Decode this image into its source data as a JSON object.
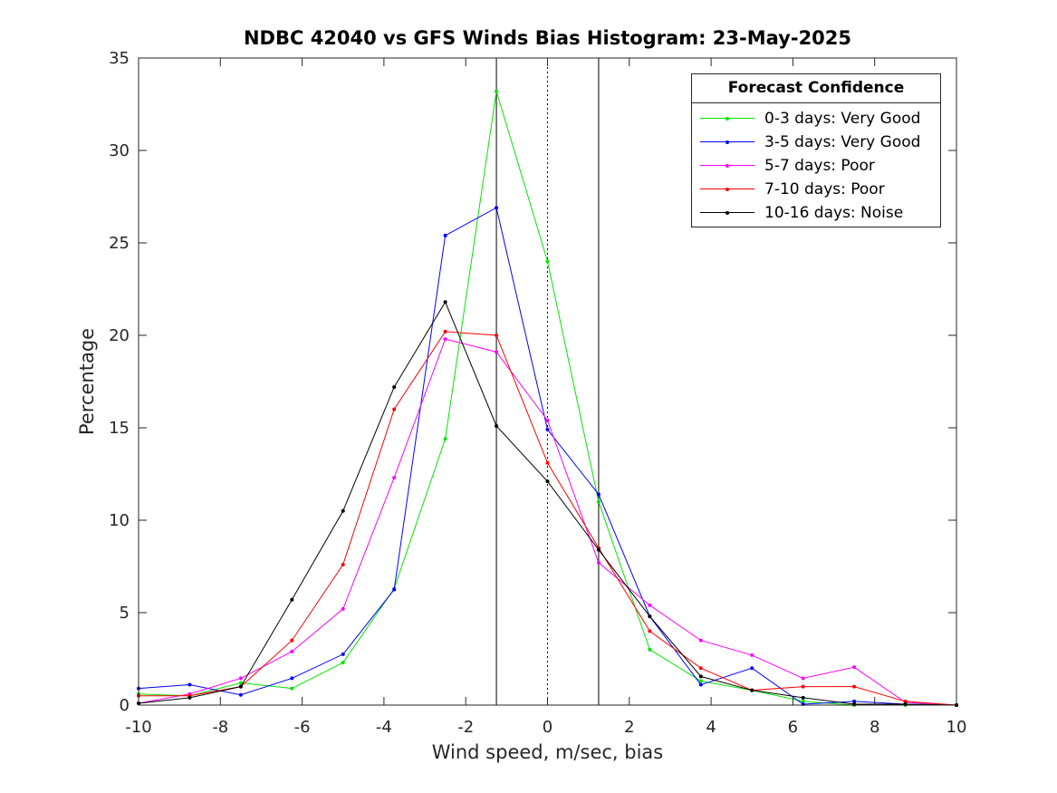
{
  "chart_data": {
    "type": "line",
    "title": "NDBC 42040 vs GFS Winds Bias Histogram: 23-May-2025",
    "xlabel": "Wind speed, m/sec, bias",
    "ylabel": "Percentage",
    "xlim": [
      -10,
      10
    ],
    "ylim": [
      0,
      35
    ],
    "xticks": [
      -10,
      -8,
      -6,
      -4,
      -2,
      0,
      2,
      4,
      6,
      8,
      10
    ],
    "yticks": [
      0,
      5,
      10,
      15,
      20,
      25,
      30,
      35
    ],
    "vlines": [
      {
        "x": -1.25,
        "style": "solid"
      },
      {
        "x": 0,
        "style": "dotted"
      },
      {
        "x": 1.25,
        "style": "solid"
      }
    ],
    "x": [
      -10,
      -8.75,
      -7.5,
      -6.25,
      -5,
      -3.75,
      -2.5,
      -1.25,
      0,
      1.25,
      2.5,
      3.75,
      5,
      6.25,
      7.5,
      8.75,
      10
    ],
    "legend": {
      "title": "Forecast Confidence",
      "location": "top-right"
    },
    "series": [
      {
        "name": "0-3 days: Very Good",
        "color": "#00e600",
        "values": [
          0.6,
          0.5,
          1.2,
          0.9,
          2.3,
          6.3,
          14.4,
          33.2,
          24.0,
          11.0,
          3.0,
          1.3,
          0.8,
          0.2,
          0.0,
          0.0,
          0.0
        ]
      },
      {
        "name": "3-5 days: Very Good",
        "color": "#0000ff",
        "values": [
          0.9,
          1.1,
          0.55,
          1.45,
          2.75,
          6.25,
          25.4,
          26.9,
          14.9,
          11.4,
          4.8,
          1.1,
          2.0,
          0.05,
          0.2,
          0.05,
          0.0
        ]
      },
      {
        "name": "5-7 days: Poor",
        "color": "#ff00ff",
        "values": [
          0.1,
          0.6,
          1.45,
          2.9,
          5.2,
          12.3,
          19.8,
          19.1,
          15.4,
          7.7,
          5.4,
          3.5,
          2.7,
          1.45,
          2.05,
          0.15,
          0.0
        ]
      },
      {
        "name": "7-10 days: Poor",
        "color": "#ff0000",
        "values": [
          0.5,
          0.5,
          1.0,
          3.5,
          7.6,
          16.0,
          20.2,
          20.0,
          13.1,
          8.5,
          4.0,
          2.0,
          0.8,
          1.0,
          1.0,
          0.2,
          0.0
        ]
      },
      {
        "name": "10-16 days: Noise",
        "color": "#000000",
        "values": [
          0.1,
          0.4,
          1.0,
          5.7,
          10.5,
          17.2,
          21.8,
          15.1,
          12.1,
          8.4,
          4.8,
          1.55,
          0.8,
          0.4,
          0.05,
          0.05,
          0.0
        ]
      }
    ]
  }
}
